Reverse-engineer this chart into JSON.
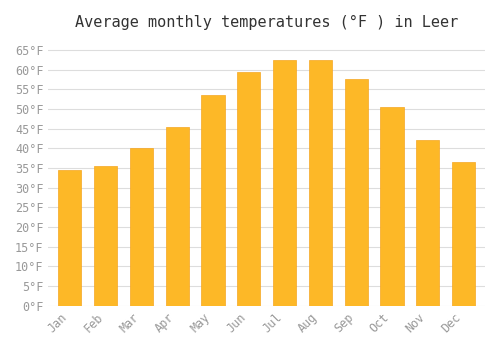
{
  "title": "Average monthly temperatures (°F ) in Leer",
  "months": [
    "Jan",
    "Feb",
    "Mar",
    "Apr",
    "May",
    "Jun",
    "Jul",
    "Aug",
    "Sep",
    "Oct",
    "Nov",
    "Dec"
  ],
  "values": [
    34.5,
    35.5,
    40.0,
    45.5,
    53.5,
    59.5,
    62.5,
    62.5,
    57.5,
    50.5,
    42.0,
    36.5
  ],
  "bar_color": "#FDB827",
  "bar_edge_color": "#F5A623",
  "background_color": "#FFFFFF",
  "grid_color": "#DDDDDD",
  "ylim": [
    0,
    68
  ],
  "yticks": [
    0,
    5,
    10,
    15,
    20,
    25,
    30,
    35,
    40,
    45,
    50,
    55,
    60,
    65
  ],
  "title_fontsize": 11,
  "tick_fontsize": 8.5,
  "font_family": "monospace"
}
